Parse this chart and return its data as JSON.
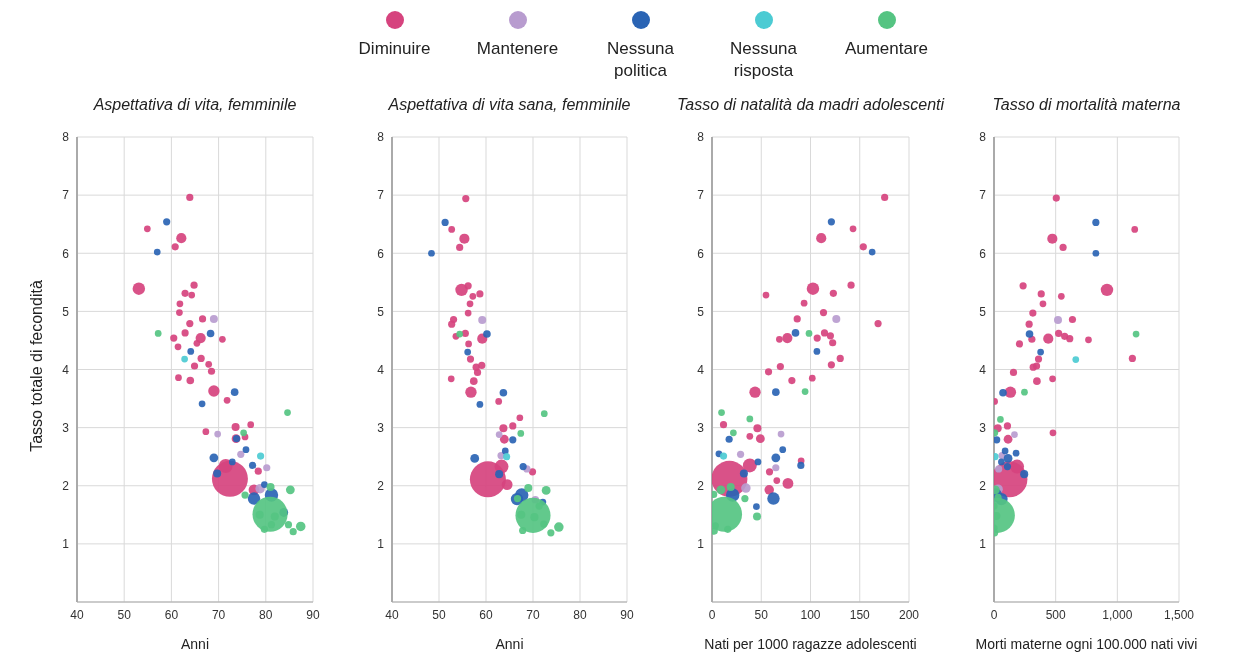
{
  "chart_data": [
    {
      "type": "bubble",
      "title": "Aspettativa di vita, femminile",
      "xlabel": "Anni",
      "ylabel": "Tasso totale di fecondità",
      "xlim": [
        40,
        90
      ],
      "xticks": [
        40,
        50,
        60,
        70,
        80,
        90
      ],
      "ylim": [
        0,
        8
      ],
      "yticks": [
        1,
        2,
        3,
        4,
        5,
        6,
        7,
        8
      ],
      "grid": true,
      "legend": "top",
      "series": [
        {
          "name": "Diminuire",
          "color": "#d6437e",
          "x": [
            63.9,
            54.9,
            62.1,
            60.8,
            53.1,
            64.8,
            62.9,
            64.3,
            61.8,
            61.7,
            63.9,
            66.6,
            60.5,
            62.9,
            66.2,
            70.8,
            65.4,
            61.4,
            66.3,
            67.9,
            64.9,
            68.5,
            61.5,
            64.0,
            69.0,
            71.8,
            73.6,
            76.8,
            73.7,
            72.4,
            71.5,
            77.5,
            78.4,
            67.3,
            75.6
          ],
          "values": [
            6.96,
            6.42,
            6.26,
            6.11,
            5.39,
            5.45,
            5.31,
            5.28,
            5.13,
            4.98,
            4.79,
            4.87,
            4.54,
            4.63,
            4.54,
            4.52,
            4.45,
            4.39,
            4.19,
            4.09,
            4.06,
            3.97,
            3.86,
            3.81,
            3.63,
            3.47,
            3.01,
            3.05,
            2.81,
            2.12,
            2.34,
            1.93,
            2.25,
            2.93,
            2.84
          ],
          "sizes": [
            0.04,
            0.035,
            0.08,
            0.04,
            0.12,
            0.04,
            0.04,
            0.035,
            0.035,
            0.035,
            0.04,
            0.04,
            0.04,
            0.04,
            0.08,
            0.035,
            0.035,
            0.035,
            0.04,
            0.035,
            0.04,
            0.04,
            0.035,
            0.045,
            0.1,
            0.035,
            0.05,
            0.035,
            0.06,
            1,
            0.15,
            0.09,
            0.04,
            0.035,
            0.035
          ]
        },
        {
          "name": "Mantenere",
          "color": "#b89ccf",
          "x": [
            69.0,
            74.7,
            80.2,
            78.8,
            69.8
          ],
          "values": [
            4.87,
            2.54,
            2.31,
            1.95,
            2.89
          ],
          "sizes": [
            0.05,
            0.04,
            0.04,
            0.07,
            0.035
          ]
        },
        {
          "name": "Nessuna politica",
          "color": "#2a64b4",
          "x": [
            59.0,
            57.0,
            68.3,
            64.1,
            73.4,
            66.5,
            69.0,
            69.7,
            77.5,
            81.2,
            75.8,
            77.2,
            83.8,
            73.8,
            72.9,
            79.7
          ],
          "values": [
            6.54,
            6.02,
            4.62,
            4.31,
            3.61,
            3.41,
            2.48,
            2.21,
            1.78,
            1.84,
            2.62,
            2.35,
            1.54,
            2.81,
            2.41,
            2.02
          ],
          "sizes": [
            0.04,
            0.035,
            0.045,
            0.035,
            0.045,
            0.035,
            0.06,
            0.05,
            0.12,
            0.14,
            0.035,
            0.04,
            0.06,
            0.04,
            0.035,
            0.035
          ]
        },
        {
          "name": "Nessuna risposta",
          "color": "#4ccbd3",
          "x": [
            78.9,
            62.8
          ],
          "values": [
            2.51,
            4.18
          ],
          "sizes": [
            0.04,
            0.035
          ]
        },
        {
          "name": "Aumentare",
          "color": "#55c482",
          "x": [
            57.2,
            84.6,
            80.9,
            85.2,
            87.4,
            85.8,
            79.7,
            78.7,
            81.9,
            81.2,
            75.3,
            84.8,
            81.0,
            75.6
          ],
          "values": [
            4.62,
            3.26,
            1.51,
            1.93,
            1.3,
            1.21,
            1.25,
            1.5,
            1.47,
            1.33,
            2.91,
            1.33,
            1.98,
            1.84
          ],
          "sizes": [
            0.035,
            0.035,
            0.95,
            0.06,
            0.07,
            0.04,
            0.04,
            0.05,
            0.05,
            0.04,
            0.035,
            0.04,
            0.05,
            0.04
          ]
        }
      ]
    },
    {
      "type": "bubble",
      "title": "Aspettativa di vita sana, femminile",
      "xlabel": "Anni",
      "xlim": [
        40,
        90
      ],
      "xticks": [
        40,
        50,
        60,
        70,
        80,
        90
      ],
      "ylim": [
        0,
        8
      ],
      "yticks": [
        1,
        2,
        3,
        4,
        5,
        6,
        7,
        8
      ],
      "grid": true,
      "series": [
        {
          "color": "#d6437e",
          "x": [
            55.7,
            52.7,
            55.4,
            54.4,
            54.8,
            56.2,
            58.7,
            57.2,
            56.6,
            56.2,
            53.1,
            52.7,
            55.6,
            59.2,
            53.6,
            56.3,
            56.7,
            57.9,
            59.1,
            58.2,
            52.6,
            57.4,
            56.8,
            62.7,
            63.7,
            65.7,
            63.9,
            60.4,
            63.3,
            64.5,
            69.9,
            67.2
          ],
          "values": [
            6.94,
            6.41,
            6.25,
            6.1,
            5.37,
            5.44,
            5.3,
            5.26,
            5.13,
            4.97,
            4.86,
            4.78,
            4.62,
            4.53,
            4.57,
            4.44,
            4.18,
            4.04,
            4.07,
            3.95,
            3.84,
            3.8,
            3.61,
            3.45,
            2.99,
            3.03,
            2.8,
            2.11,
            2.33,
            2.02,
            2.24,
            3.17
          ],
          "sizes": [
            0.04,
            0.035,
            0.08,
            0.04,
            0.12,
            0.04,
            0.04,
            0.035,
            0.035,
            0.035,
            0.04,
            0.04,
            0.04,
            0.08,
            0.035,
            0.035,
            0.04,
            0.04,
            0.04,
            0.04,
            0.035,
            0.045,
            0.1,
            0.035,
            0.05,
            0.04,
            0.06,
            1,
            0.15,
            0.09,
            0.04,
            0.035
          ]
        },
        {
          "color": "#b89ccf",
          "x": [
            59.2,
            63.2,
            68.7,
            70.5,
            62.8
          ],
          "values": [
            4.85,
            2.52,
            2.29,
            1.76,
            2.88
          ],
          "sizes": [
            0.05,
            0.04,
            0.04,
            0.045,
            0.035
          ]
        },
        {
          "color": "#2a64b4",
          "x": [
            51.3,
            48.4,
            60.2,
            56.1,
            63.7,
            58.7,
            57.6,
            62.8,
            66.6,
            67.6,
            64.1,
            67.9,
            65.7,
            72.1
          ],
          "values": [
            6.53,
            6.0,
            4.61,
            4.3,
            3.6,
            3.4,
            2.47,
            2.2,
            1.77,
            1.84,
            2.6,
            2.33,
            2.79,
            1.72
          ],
          "sizes": [
            0.04,
            0.035,
            0.045,
            0.035,
            0.045,
            0.035,
            0.06,
            0.05,
            0.12,
            0.14,
            0.035,
            0.04,
            0.04,
            0.035
          ]
        },
        {
          "color": "#4ccbd3",
          "x": [
            64.4
          ],
          "values": [
            2.5
          ],
          "sizes": [
            0.04
          ]
        },
        {
          "color": "#55c482",
          "x": [
            54.4,
            72.4,
            70.0,
            72.8,
            75.5,
            73.8,
            67.8,
            67.5,
            70.3,
            72.3,
            67.4,
            69.0,
            66.7,
            71.3
          ],
          "values": [
            4.61,
            3.24,
            1.49,
            1.92,
            1.29,
            1.19,
            1.23,
            1.5,
            1.46,
            1.34,
            2.9,
            1.96,
            1.78,
            1.65
          ],
          "sizes": [
            0.035,
            0.035,
            0.95,
            0.06,
            0.07,
            0.04,
            0.04,
            0.05,
            0.05,
            0.04,
            0.035,
            0.05,
            0.04,
            0.04
          ]
        }
      ]
    },
    {
      "type": "bubble",
      "title": "Tasso di natalità da madri adolescenti",
      "xlabel": "Nati per 1000 ragazze adolescenti",
      "xlim": [
        0,
        200
      ],
      "xticks": [
        0,
        50,
        100,
        150,
        200
      ],
      "ylim": [
        0,
        8
      ],
      "yticks": [
        1,
        2,
        3,
        4,
        5,
        6,
        7,
        8
      ],
      "grid": true,
      "series": [
        {
          "color": "#d6437e",
          "x": [
            175.3,
            143.2,
            110.9,
            153.6,
            102.5,
            141.2,
            123.2,
            93.5,
            54.8,
            113.2,
            86.5,
            168.6,
            76.5,
            106.8,
            114.2,
            120.2,
            122.5,
            68.4,
            130.2,
            121.2,
            69.4,
            57.4,
            81.1,
            101.8,
            43.7,
            46.1,
            49.1,
            11.7,
            17.7,
            38.4,
            77.1,
            58.1,
            58.4,
            38.4,
            65.8,
            90.5
          ],
          "values": [
            6.96,
            6.42,
            6.26,
            6.11,
            5.39,
            5.45,
            5.31,
            5.14,
            5.28,
            4.98,
            4.87,
            4.79,
            4.54,
            4.54,
            4.63,
            4.58,
            4.46,
            4.52,
            4.19,
            4.08,
            4.05,
            3.96,
            3.81,
            3.85,
            3.61,
            2.99,
            2.81,
            3.05,
            2.12,
            2.35,
            2.04,
            1.93,
            2.24,
            2.85,
            2.09,
            2.43
          ],
          "sizes": [
            0.04,
            0.035,
            0.08,
            0.04,
            0.12,
            0.04,
            0.04,
            0.035,
            0.035,
            0.04,
            0.04,
            0.04,
            0.08,
            0.04,
            0.04,
            0.04,
            0.04,
            0.035,
            0.04,
            0.04,
            0.04,
            0.04,
            0.04,
            0.035,
            0.1,
            0.05,
            0.06,
            0.04,
            1,
            0.15,
            0.09,
            0.07,
            0.04,
            0.035,
            0.035,
            0.035
          ]
        },
        {
          "color": "#b89ccf",
          "x": [
            126.2,
            29.0,
            64.8,
            34.4,
            70.1
          ],
          "values": [
            4.87,
            2.54,
            2.31,
            1.96,
            2.89
          ],
          "sizes": [
            0.05,
            0.04,
            0.04,
            0.07,
            0.035
          ]
        },
        {
          "color": "#2a64b4",
          "x": [
            121.2,
            162.6,
            84.8,
            106.5,
            64.8,
            17.4,
            64.8,
            32.4,
            21.0,
            62.4,
            90.2,
            71.8,
            46.7,
            7.0,
            45.1
          ],
          "values": [
            6.54,
            6.02,
            4.63,
            4.31,
            3.61,
            2.8,
            2.48,
            2.21,
            1.84,
            1.78,
            2.35,
            2.62,
            2.41,
            2.55,
            1.64
          ],
          "sizes": [
            0.04,
            0.035,
            0.045,
            0.035,
            0.045,
            0.04,
            0.06,
            0.05,
            0.14,
            0.12,
            0.04,
            0.035,
            0.035,
            0.035,
            0.035
          ]
        },
        {
          "color": "#4ccbd3",
          "x": [
            11.7
          ],
          "values": [
            2.51
          ],
          "sizes": [
            0.04
          ]
        },
        {
          "color": "#55c482",
          "x": [
            98.5,
            94.5,
            9.7,
            12.7,
            9.0,
            16.0,
            2.3,
            3.3,
            45.7,
            33.4,
            19.0,
            1.7,
            38.4,
            21.7
          ],
          "values": [
            4.62,
            3.62,
            3.26,
            1.51,
            1.93,
            1.25,
            1.22,
            1.31,
            1.47,
            1.78,
            1.98,
            1.85,
            3.15,
            2.91
          ],
          "sizes": [
            0.035,
            0.035,
            0.035,
            0.95,
            0.06,
            0.04,
            0.04,
            0.04,
            0.05,
            0.04,
            0.05,
            0.04,
            0.035,
            0.035
          ]
        }
      ]
    },
    {
      "type": "bubble",
      "title": "Tasso di mortalità materna",
      "xlabel": "Morti materne ogni 100.000 nati vivi",
      "xlim": [
        0,
        1500
      ],
      "xticks": [
        0,
        500,
        {
          "value": 1000,
          "label": "1,000"
        },
        {
          "value": 1500,
          "label": "1,500"
        }
      ],
      "ylim": [
        0,
        8
      ],
      "yticks": [
        1,
        2,
        3,
        4,
        5,
        6,
        7,
        8
      ],
      "grid": true,
      "series": [
        {
          "color": "#d6437e",
          "x": [
            505,
            1141,
            473,
            560,
            916,
            236,
            383,
            546,
            397,
            315,
            636,
            285,
            440,
            524,
            573,
            614,
            307,
            206,
            766,
            1122,
            361,
            318,
            345,
            158,
            348,
            475,
            133,
            30,
            109,
            114,
            125,
            187,
            478,
            5
          ],
          "values": [
            6.95,
            6.41,
            6.25,
            6.1,
            5.37,
            5.44,
            5.3,
            5.26,
            5.13,
            4.97,
            4.86,
            4.78,
            4.53,
            4.62,
            4.57,
            4.53,
            4.52,
            4.44,
            4.51,
            4.19,
            4.18,
            4.04,
            4.06,
            3.95,
            3.8,
            3.84,
            3.61,
            2.99,
            3.03,
            2.8,
            2.11,
            2.33,
            2.91,
            3.45
          ],
          "sizes": [
            0.04,
            0.035,
            0.08,
            0.04,
            0.12,
            0.04,
            0.04,
            0.035,
            0.035,
            0.04,
            0.04,
            0.04,
            0.08,
            0.04,
            0.04,
            0.04,
            0.04,
            0.04,
            0.035,
            0.04,
            0.04,
            0.04,
            0.04,
            0.04,
            0.045,
            0.035,
            0.1,
            0.05,
            0.04,
            0.06,
            1,
            0.15,
            0.035,
            0.035
          ]
        },
        {
          "color": "#b89ccf",
          "x": [
            519,
            65,
            38,
            33,
            166
          ],
          "values": [
            4.85,
            2.52,
            2.29,
            1.94,
            2.88
          ],
          "sizes": [
            0.05,
            0.04,
            0.04,
            0.07,
            0.035
          ]
        },
        {
          "color": "#2a64b4",
          "x": [
            826,
            826,
            288,
            378,
            73,
            22,
            114,
            245,
            11,
            60,
            90,
            179,
            109,
            60
          ],
          "values": [
            6.53,
            6.0,
            4.61,
            4.3,
            3.6,
            2.79,
            2.47,
            2.2,
            1.84,
            1.77,
            2.6,
            2.56,
            2.33,
            2.41
          ],
          "sizes": [
            0.04,
            0.035,
            0.045,
            0.035,
            0.045,
            0.04,
            0.06,
            0.05,
            0.14,
            0.12,
            0.035,
            0.035,
            0.04,
            0.035
          ]
        },
        {
          "color": "#4ccbd3",
          "x": [
            8,
            663
          ],
          "values": [
            2.5,
            4.17
          ],
          "sizes": [
            0.04,
            0.035
          ]
        },
        {
          "color": "#55c482",
          "x": [
            1152,
            27,
            11,
            0,
            5,
            19,
            0,
            247,
            52,
            5,
            33
          ],
          "values": [
            4.61,
            1.49,
            1.93,
            1.27,
            1.19,
            1.48,
            1.65,
            3.61,
            3.14,
            2.91,
            1.8
          ],
          "sizes": [
            0.035,
            0.95,
            0.06,
            0.04,
            0.04,
            0.05,
            0.04,
            0.035,
            0.035,
            0.04,
            0.04
          ]
        }
      ]
    }
  ]
}
